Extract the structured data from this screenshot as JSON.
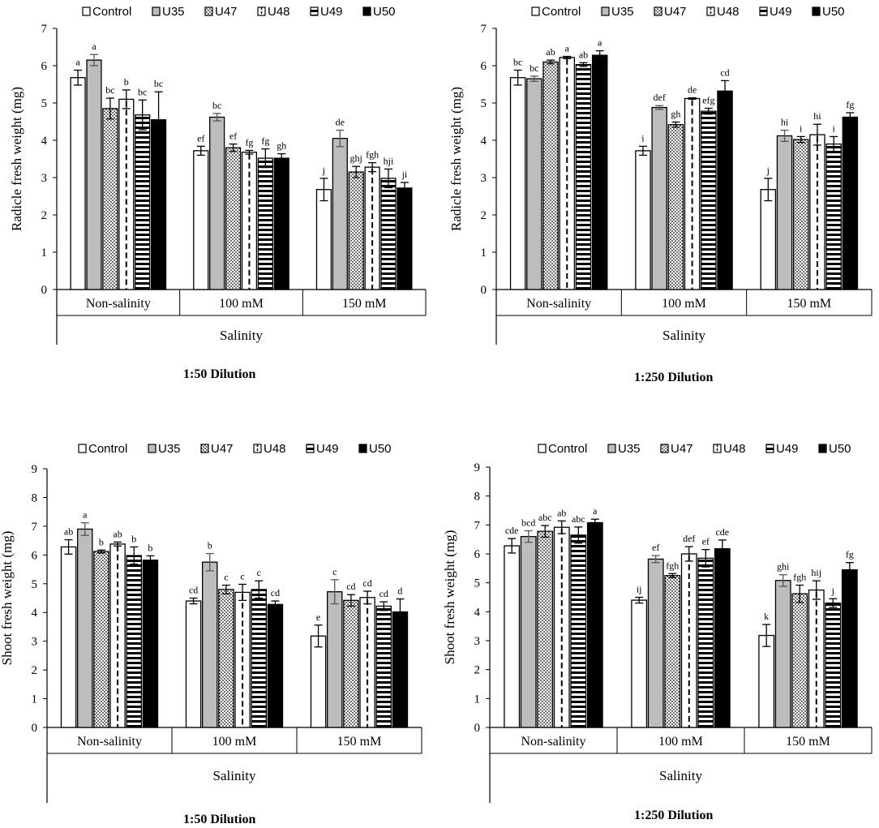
{
  "figure": {
    "legend_entries": [
      "Control",
      "U35",
      "U47",
      "U48",
      "U49",
      "U50"
    ],
    "group_axis_title": "Salinity",
    "groups": [
      "Non-salinity",
      "100 mM",
      "150  mM"
    ]
  },
  "chart_data": [
    {
      "type": "bar",
      "title": "1:50 Dilution",
      "xlabel": "Salinity",
      "ylabel": "Radicle fresh weight (mg)",
      "ylim": [
        0,
        7
      ],
      "yticks": [
        0,
        1,
        2,
        3,
        4,
        5,
        6,
        7
      ],
      "categories": [
        "Non-salinity",
        "100 mM",
        "150  mM"
      ],
      "series": [
        {
          "name": "Control",
          "values": [
            5.68,
            3.72,
            2.68
          ],
          "errors": [
            0.2,
            0.12,
            0.3
          ],
          "letters": [
            "a",
            "ef",
            "j"
          ]
        },
        {
          "name": "U35",
          "values": [
            6.15,
            4.62,
            4.05
          ],
          "errors": [
            0.15,
            0.1,
            0.22
          ],
          "letters": [
            "a",
            "bc",
            "de"
          ]
        },
        {
          "name": "U47",
          "values": [
            4.85,
            3.8,
            3.15
          ],
          "errors": [
            0.28,
            0.1,
            0.15
          ],
          "letters": [
            "bc",
            "ef",
            "ghj"
          ]
        },
        {
          "name": "U48",
          "values": [
            5.1,
            3.68,
            3.28
          ],
          "errors": [
            0.25,
            0.05,
            0.12
          ],
          "letters": [
            "b",
            "fg",
            "fgh"
          ]
        },
        {
          "name": "U49",
          "values": [
            4.68,
            3.52,
            2.98
          ],
          "errors": [
            0.4,
            0.25,
            0.25
          ],
          "letters": [
            "bc",
            "fg",
            "hji"
          ]
        },
        {
          "name": "U50",
          "values": [
            4.55,
            3.52,
            2.72
          ],
          "errors": [
            0.75,
            0.12,
            0.15
          ],
          "letters": [
            "bc",
            "gh",
            "ji"
          ]
        }
      ]
    },
    {
      "type": "bar",
      "title": "1:250 Dilution",
      "xlabel": "Salinity",
      "ylabel": "Radicle fresh weight (mg)",
      "ylim": [
        0,
        7
      ],
      "yticks": [
        0,
        1,
        2,
        3,
        4,
        5,
        6,
        7
      ],
      "categories": [
        "Non-salinity",
        "100 mM",
        "150  mM"
      ],
      "series": [
        {
          "name": "Control",
          "values": [
            5.68,
            3.72,
            2.68
          ],
          "errors": [
            0.2,
            0.12,
            0.3
          ],
          "letters": [
            "bc",
            "i",
            "j"
          ]
        },
        {
          "name": "U35",
          "values": [
            5.65,
            4.88,
            4.12
          ],
          "errors": [
            0.07,
            0.05,
            0.15
          ],
          "letters": [
            "bc",
            "def",
            "hi"
          ]
        },
        {
          "name": "U47",
          "values": [
            6.1,
            4.42,
            4.02
          ],
          "errors": [
            0.05,
            0.07,
            0.08
          ],
          "letters": [
            "ab",
            "gh",
            "i"
          ]
        },
        {
          "name": "U48",
          "values": [
            6.22,
            5.12,
            4.15
          ],
          "errors": [
            0.03,
            0.02,
            0.28
          ],
          "letters": [
            "a",
            "de",
            "hi"
          ]
        },
        {
          "name": "U49",
          "values": [
            6.03,
            4.78,
            3.9
          ],
          "errors": [
            0.05,
            0.08,
            0.2
          ],
          "letters": [
            "ab",
            "efg",
            "i"
          ]
        },
        {
          "name": "U50",
          "values": [
            6.28,
            5.32,
            4.62
          ],
          "errors": [
            0.12,
            0.28,
            0.12
          ],
          "letters": [
            "a",
            "cd",
            "fg"
          ]
        }
      ]
    },
    {
      "type": "bar",
      "title": "1:50 Dilution",
      "xlabel": "Salinity",
      "ylabel": "Shoot fresh weight (mg)",
      "ylim": [
        0,
        9
      ],
      "yticks": [
        0,
        1,
        2,
        3,
        4,
        5,
        6,
        7,
        8,
        9
      ],
      "categories": [
        "Non-salinity",
        "100 mM",
        "150  mM"
      ],
      "series": [
        {
          "name": "Control",
          "values": [
            6.28,
            4.4,
            3.18
          ],
          "errors": [
            0.25,
            0.1,
            0.38
          ],
          "letters": [
            "ab",
            "cd",
            "e"
          ]
        },
        {
          "name": "U35",
          "values": [
            6.9,
            5.75,
            4.72
          ],
          "errors": [
            0.22,
            0.3,
            0.42
          ],
          "letters": [
            "a",
            "b",
            "c"
          ]
        },
        {
          "name": "U47",
          "values": [
            6.12,
            4.8,
            4.42
          ],
          "errors": [
            0.05,
            0.15,
            0.2
          ],
          "letters": [
            "b",
            "c",
            "cd"
          ]
        },
        {
          "name": "U48",
          "values": [
            6.38,
            4.7,
            4.52
          ],
          "errors": [
            0.07,
            0.28,
            0.22
          ],
          "letters": [
            "ab",
            "c",
            "cd"
          ]
        },
        {
          "name": "U49",
          "values": [
            5.98,
            4.8,
            4.22
          ],
          "errors": [
            0.3,
            0.3,
            0.15
          ],
          "letters": [
            "b",
            "c",
            "cd"
          ]
        },
        {
          "name": "U50",
          "values": [
            5.82,
            4.28,
            4.02
          ],
          "errors": [
            0.15,
            0.12,
            0.45
          ],
          "letters": [
            "b",
            "cd",
            "d"
          ]
        }
      ]
    },
    {
      "type": "bar",
      "title": "1:250 Dilution",
      "xlabel": "Salinity",
      "ylabel": "Shoot fresh weight (mg)",
      "ylim": [
        0,
        9
      ],
      "yticks": [
        0,
        1,
        2,
        3,
        4,
        5,
        6,
        7,
        8,
        9
      ],
      "categories": [
        "Non-salinity",
        "100 mM",
        "150  mM"
      ],
      "series": [
        {
          "name": "Control",
          "values": [
            6.28,
            4.4,
            3.18
          ],
          "errors": [
            0.25,
            0.1,
            0.38
          ],
          "letters": [
            "cde",
            "ij",
            "k"
          ]
        },
        {
          "name": "U35",
          "values": [
            6.6,
            5.82,
            5.08
          ],
          "errors": [
            0.2,
            0.12,
            0.2
          ],
          "letters": [
            "bcd",
            "ef",
            "ghi"
          ]
        },
        {
          "name": "U47",
          "values": [
            6.78,
            5.25,
            4.62
          ],
          "errors": [
            0.2,
            0.07,
            0.3
          ],
          "letters": [
            "abc",
            "fgh",
            "fgh"
          ]
        },
        {
          "name": "U48",
          "values": [
            6.92,
            6.0,
            4.75
          ],
          "errors": [
            0.22,
            0.25,
            0.32
          ],
          "letters": [
            "ab",
            "def",
            "hij"
          ]
        },
        {
          "name": "U49",
          "values": [
            6.65,
            5.85,
            4.3
          ],
          "errors": [
            0.28,
            0.3,
            0.15
          ],
          "letters": [
            "abc",
            "ef",
            "j"
          ]
        },
        {
          "name": "U50",
          "values": [
            7.08,
            6.18,
            5.45
          ],
          "errors": [
            0.12,
            0.3,
            0.25
          ],
          "letters": [
            "a",
            "cde",
            "fg"
          ]
        }
      ]
    }
  ]
}
